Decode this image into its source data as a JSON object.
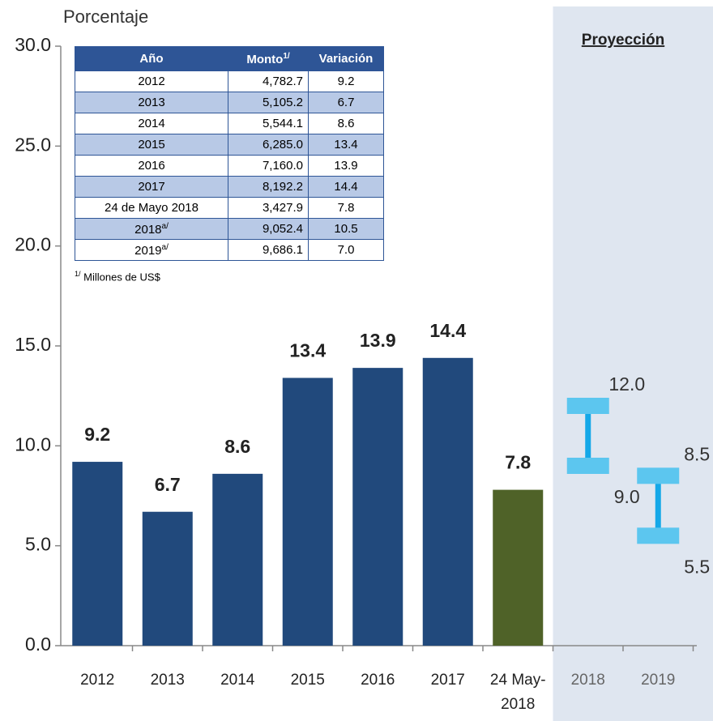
{
  "chart_data": {
    "type": "bar",
    "y_axis_label": "Porcentaje",
    "projection_label": "Proyección",
    "categories": [
      "2012",
      "2013",
      "2014",
      "2015",
      "2016",
      "2017",
      "24 May-2018",
      "2018",
      "2019"
    ],
    "values": [
      9.2,
      6.7,
      8.6,
      13.4,
      13.9,
      14.4,
      7.8,
      null,
      null
    ],
    "colors": [
      "#21497c",
      "#21497c",
      "#21497c",
      "#21497c",
      "#21497c",
      "#21497c",
      "#4f6228",
      null,
      null
    ],
    "range_low": [
      null,
      null,
      null,
      null,
      null,
      null,
      null,
      9.0,
      5.5
    ],
    "range_low_labels": [
      null,
      null,
      null,
      null,
      null,
      null,
      null,
      "9.0",
      "5.5"
    ],
    "range_high": [
      null,
      null,
      null,
      null,
      null,
      null,
      null,
      12.0,
      8.5
    ],
    "range_high_labels": [
      null,
      null,
      null,
      null,
      null,
      null,
      null,
      "12.0",
      "8.5"
    ],
    "range_cap_color": "#5cc6ef",
    "range_line_color": "#14a8e8",
    "projection_color": "#dfe6f0",
    "ylim": [
      0,
      30
    ],
    "yticks": [
      {
        "value": 0,
        "label": "0.0"
      },
      {
        "value": 5,
        "label": "5.0"
      },
      {
        "value": 10,
        "label": "10.0"
      },
      {
        "value": 15,
        "label": "15.0"
      },
      {
        "value": 20,
        "label": "20.0"
      },
      {
        "value": 25,
        "label": "25.0"
      },
      {
        "value": 30,
        "label": "30.0"
      }
    ]
  },
  "table": {
    "columns": [
      {
        "label": "Año"
      },
      {
        "label": "Monto",
        "note": "1/"
      },
      {
        "label": "Variación"
      }
    ],
    "rows": [
      {
        "year": "2012",
        "monto": "4,782.7",
        "variacion": "9.2"
      },
      {
        "year": "2013",
        "monto": "5,105.2",
        "variacion": "6.7"
      },
      {
        "year": "2014",
        "monto": "5,544.1",
        "variacion": "8.6"
      },
      {
        "year": "2015",
        "monto": "6,285.0",
        "variacion": "13.4"
      },
      {
        "year": "2016",
        "monto": "7,160.0",
        "variacion": "13.9"
      },
      {
        "year": "2017",
        "monto": "8,192.2",
        "variacion": "14.4"
      },
      {
        "year": "24 de Mayo 2018",
        "monto": "3,427.9",
        "variacion": "7.8"
      },
      {
        "year": "2018",
        "note": "a/",
        "monto": "9,052.4",
        "variacion": "10.5"
      },
      {
        "year": "2019",
        "note": "a/",
        "monto": "9,686.1",
        "variacion": "7.0"
      }
    ],
    "footnote": {
      "mark": "1/",
      "text": "Millones de US$"
    }
  }
}
